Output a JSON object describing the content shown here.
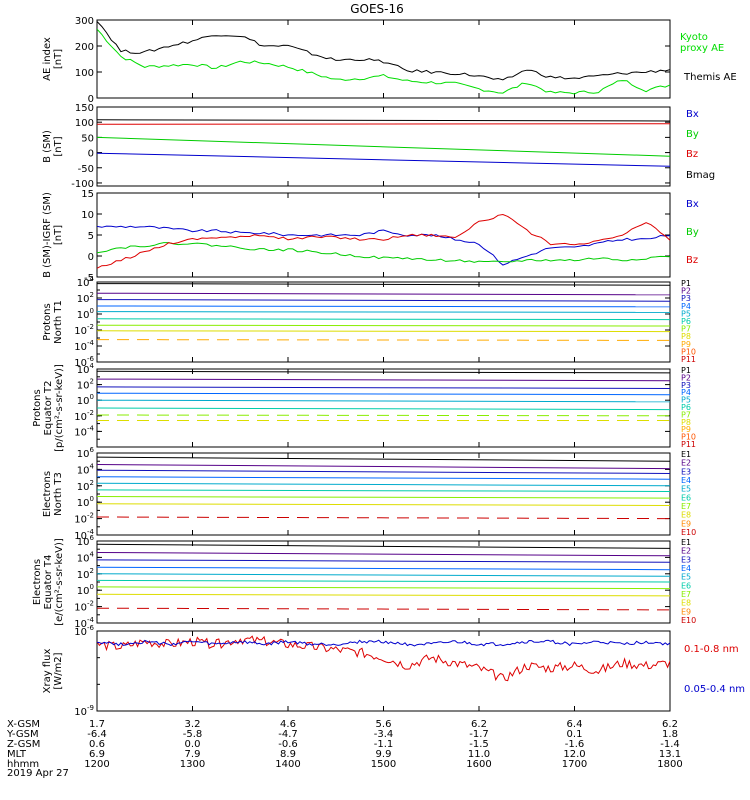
{
  "title": "GOES-16",
  "time_ticks": [
    "1200",
    "1300",
    "1400",
    "1500",
    "1600",
    "1700",
    "1800"
  ],
  "ephemeris": {
    "rows": [
      {
        "label": "X-GSM",
        "values": [
          "1.7",
          "3.2",
          "4.6",
          "5.6",
          "6.2",
          "6.4",
          "6.2"
        ]
      },
      {
        "label": "Y-GSM",
        "values": [
          "-6.4",
          "-5.8",
          "-4.7",
          "-3.4",
          "-1.7",
          "0.1",
          "1.8"
        ]
      },
      {
        "label": "Z-GSM",
        "values": [
          "0.6",
          "0.0",
          "-0.6",
          "-1.1",
          "-1.5",
          "-1.6",
          "-1.4"
        ]
      },
      {
        "label": "MLT",
        "values": [
          "6.9",
          "7.9",
          "8.9",
          "9.9",
          "11.0",
          "12.0",
          "13.1"
        ]
      },
      {
        "label": "hhmm",
        "values": [
          "1200",
          "1300",
          "1400",
          "1500",
          "1600",
          "1700",
          "1800"
        ]
      }
    ],
    "date": "2019 Apr 27"
  },
  "chart_data": [
    {
      "type": "line",
      "panel": "ae",
      "ylabel": [
        "AE index",
        "[nT]"
      ],
      "ylim": [
        0,
        300
      ],
      "yticks": [
        "0",
        "100",
        "200",
        "300"
      ],
      "x": [
        12.0,
        12.25,
        12.5,
        12.75,
        13.0,
        13.25,
        13.5,
        13.75,
        14.0,
        14.25,
        14.5,
        14.75,
        15.0,
        15.25,
        15.5,
        15.75,
        16.0,
        16.25,
        16.5,
        16.75,
        17.0,
        17.25,
        17.5,
        17.75,
        18.0
      ],
      "series": [
        {
          "name": "Kyoto proxy AE",
          "color": "#00dd00",
          "legend_lines": [
            "Kyoto",
            "proxy AE"
          ],
          "values": [
            265,
            160,
            120,
            125,
            130,
            115,
            140,
            135,
            120,
            95,
            70,
            75,
            85,
            65,
            60,
            55,
            35,
            20,
            60,
            20,
            20,
            25,
            70,
            30,
            50
          ]
        },
        {
          "name": "Themis AE",
          "color": "#000000",
          "legend_lines": [
            "Themis AE"
          ],
          "values": [
            300,
            180,
            175,
            200,
            220,
            245,
            240,
            200,
            200,
            170,
            145,
            150,
            140,
            105,
            100,
            95,
            85,
            65,
            110,
            80,
            75,
            85,
            95,
            100,
            110
          ]
        }
      ]
    },
    {
      "type": "line",
      "panel": "bsm",
      "ylabel": [
        "B (SM)",
        "[nT]"
      ],
      "ylim": [
        -110,
        150
      ],
      "yticks": [
        "-100",
        "-50",
        "0",
        "50",
        "100",
        "150"
      ],
      "x": [
        12,
        18
      ],
      "series": [
        {
          "name": "Bx",
          "color": "#0000cc",
          "values": [
            -2,
            -45
          ]
        },
        {
          "name": "By",
          "color": "#00cc00",
          "values": [
            50,
            -12
          ]
        },
        {
          "name": "Bz",
          "color": "#dd0000",
          "values": [
            93,
            95
          ]
        },
        {
          "name": "Bmag",
          "color": "#000000",
          "values": [
            108,
            104
          ]
        }
      ]
    },
    {
      "type": "line",
      "panel": "bigrf",
      "ylabel": [
        "B (SM)-IGRF (SM)",
        "[nT]"
      ],
      "ylim": [
        -5,
        15
      ],
      "yticks": [
        "-5",
        "0",
        "5",
        "10",
        "15"
      ],
      "x": [
        12.0,
        12.25,
        12.5,
        12.75,
        13.0,
        13.25,
        13.5,
        13.75,
        14.0,
        14.25,
        14.5,
        14.75,
        15.0,
        15.25,
        15.5,
        15.75,
        16.0,
        16.25,
        16.5,
        16.75,
        17.0,
        17.25,
        17.5,
        17.75,
        18.0
      ],
      "series": [
        {
          "name": "Bx",
          "color": "#0000cc",
          "values": [
            7,
            7,
            7,
            6.5,
            6,
            6,
            5.5,
            5.5,
            5,
            5,
            5,
            5,
            6,
            5,
            5,
            4,
            3,
            -2,
            0,
            2,
            2,
            3,
            4,
            4,
            5
          ]
        },
        {
          "name": "By",
          "color": "#00cc00",
          "values": [
            1,
            2,
            2.5,
            3,
            3,
            2.5,
            2,
            1.5,
            1.5,
            1,
            0.5,
            0,
            -0.5,
            -0.5,
            -1,
            -1,
            -1.5,
            -1.5,
            -1,
            -1,
            -1,
            -0.5,
            -1,
            -0.5,
            0
          ]
        },
        {
          "name": "Bz",
          "color": "#dd0000",
          "values": [
            -3,
            -1,
            1,
            3,
            4,
            4.5,
            4.5,
            5,
            4,
            4.5,
            4.5,
            4,
            4,
            5,
            5,
            4.5,
            8,
            10,
            6,
            3,
            2.5,
            3.5,
            5,
            8,
            4
          ]
        }
      ]
    },
    {
      "type": "line",
      "panel": "pnt1",
      "ylabel": [
        "Protons",
        "North T1"
      ],
      "ylog": [
        -6,
        4
      ],
      "yticks": [
        {
          "base": "10",
          "exp": "4"
        },
        {
          "base": "10",
          "exp": "2"
        },
        {
          "base": "10",
          "exp": "0"
        },
        {
          "base": "10",
          "exp": "-2"
        },
        {
          "base": "10",
          "exp": "-4"
        },
        {
          "base": "10",
          "exp": "-6"
        }
      ],
      "x": [
        12,
        18
      ],
      "series": [
        {
          "name": "P1",
          "color": "#000000",
          "values": [
            3.8,
            3.6
          ]
        },
        {
          "name": "P2",
          "color": "#550088",
          "values": [
            2.6,
            2.4
          ]
        },
        {
          "name": "P3",
          "color": "#1111bb",
          "values": [
            1.8,
            1.6
          ]
        },
        {
          "name": "P4",
          "color": "#0066ff",
          "values": [
            1.0,
            0.9
          ]
        },
        {
          "name": "P5",
          "color": "#00aacc",
          "values": [
            0.3,
            0.2
          ]
        },
        {
          "name": "P6",
          "color": "#00ccaa",
          "values": [
            -0.6,
            -0.7
          ]
        },
        {
          "name": "P7",
          "color": "#88ee00",
          "values": [
            -1.4,
            -1.5
          ]
        },
        {
          "name": "P8",
          "color": "#dddd00",
          "values": [
            -2.1,
            -2.2
          ]
        },
        {
          "name": "P9",
          "color": "#ffaa00",
          "values": [
            -3.2,
            -3.3
          ],
          "dashed": true
        },
        {
          "name": "P10",
          "color": "#ff5500",
          "values": null
        },
        {
          "name": "P11",
          "color": "#cc0000",
          "values": null
        }
      ]
    },
    {
      "type": "line",
      "panel": "pet2",
      "ylabel": [
        "Protons",
        "Equator T2",
        "[p/(cm²-s-sr-keV)]"
      ],
      "ylog": [
        -6,
        4
      ],
      "yticks": [
        {
          "base": "10",
          "exp": "4"
        },
        {
          "base": "10",
          "exp": "2"
        },
        {
          "base": "10",
          "exp": "0"
        },
        {
          "base": "10",
          "exp": "-2"
        },
        {
          "base": "10",
          "exp": "-4"
        }
      ],
      "x": [
        12,
        18
      ],
      "series": [
        {
          "name": "P1",
          "color": "#000000",
          "values": [
            3.7,
            3.5
          ]
        },
        {
          "name": "P2",
          "color": "#550088",
          "values": [
            2.7,
            2.5
          ]
        },
        {
          "name": "P3",
          "color": "#1111bb",
          "values": [
            1.7,
            1.5
          ]
        },
        {
          "name": "P4",
          "color": "#0066ff",
          "values": [
            0.9,
            0.7
          ]
        },
        {
          "name": "P5",
          "color": "#00aacc",
          "values": [
            0.0,
            -0.2
          ]
        },
        {
          "name": "P6",
          "color": "#00ccaa",
          "values": [
            -1.0,
            -1.2
          ]
        },
        {
          "name": "P7",
          "color": "#88ee00",
          "values": [
            -1.9,
            -2.0
          ],
          "dashed": true
        },
        {
          "name": "P8",
          "color": "#dddd00",
          "values": [
            -2.6,
            -2.6
          ],
          "dashed": true
        },
        {
          "name": "P9",
          "color": "#ffaa00",
          "values": null
        },
        {
          "name": "P10",
          "color": "#ff5500",
          "values": null
        },
        {
          "name": "P11",
          "color": "#cc0000",
          "values": null
        }
      ]
    },
    {
      "type": "line",
      "panel": "ent3",
      "ylabel": [
        "Electrons",
        "North T3"
      ],
      "ylog": [
        -4,
        6
      ],
      "yticks": [
        {
          "base": "10",
          "exp": "6"
        },
        {
          "base": "10",
          "exp": "4"
        },
        {
          "base": "10",
          "exp": "2"
        },
        {
          "base": "10",
          "exp": "0"
        },
        {
          "base": "10",
          "exp": "-2"
        },
        {
          "base": "10",
          "exp": "-4"
        }
      ],
      "x": [
        12,
        18
      ],
      "series": [
        {
          "name": "E1",
          "color": "#000000",
          "values": [
            5.5,
            5.0
          ]
        },
        {
          "name": "E2",
          "color": "#550088",
          "values": [
            4.6,
            4.1
          ]
        },
        {
          "name": "E3",
          "color": "#1111bb",
          "values": [
            3.9,
            3.5
          ]
        },
        {
          "name": "E4",
          "color": "#0066ff",
          "values": [
            3.1,
            2.8
          ]
        },
        {
          "name": "E5",
          "color": "#00aacc",
          "values": [
            2.3,
            2.0
          ]
        },
        {
          "name": "E6",
          "color": "#00ccaa",
          "values": [
            1.5,
            1.3
          ]
        },
        {
          "name": "E7",
          "color": "#88ee00",
          "values": [
            0.7,
            0.5
          ]
        },
        {
          "name": "E8",
          "color": "#dddd00",
          "values": [
            -0.2,
            -0.4
          ]
        },
        {
          "name": "E9",
          "color": "#ff8800",
          "values": null
        },
        {
          "name": "E10",
          "color": "#cc0000",
          "values": [
            -1.8,
            -2.0
          ],
          "dashed": true
        }
      ]
    },
    {
      "type": "line",
      "panel": "eet4",
      "ylabel": [
        "Electrons",
        "Equator T4",
        "[e/(cm²-s-sr-keV)]"
      ],
      "ylog": [
        -4,
        6
      ],
      "yticks": [
        {
          "base": "10",
          "exp": "6"
        },
        {
          "base": "10",
          "exp": "4"
        },
        {
          "base": "10",
          "exp": "2"
        },
        {
          "base": "10",
          "exp": "0"
        },
        {
          "base": "10",
          "exp": "-2"
        },
        {
          "base": "10",
          "exp": "-4"
        }
      ],
      "x": [
        12,
        18
      ],
      "series": [
        {
          "name": "E1",
          "color": "#000000",
          "values": [
            5.6,
            5.1
          ]
        },
        {
          "name": "E2",
          "color": "#550088",
          "values": [
            4.6,
            4.2
          ]
        },
        {
          "name": "E3",
          "color": "#1111bb",
          "values": [
            3.7,
            3.4
          ]
        },
        {
          "name": "E4",
          "color": "#0066ff",
          "values": [
            2.8,
            2.5
          ]
        },
        {
          "name": "E5",
          "color": "#00aacc",
          "values": [
            2.0,
            1.7
          ]
        },
        {
          "name": "E6",
          "color": "#00ccaa",
          "values": [
            1.2,
            1.0
          ]
        },
        {
          "name": "E7",
          "color": "#88ee00",
          "values": [
            0.4,
            0.2
          ]
        },
        {
          "name": "E8",
          "color": "#dddd00",
          "values": [
            -0.5,
            -0.7
          ]
        },
        {
          "name": "E9",
          "color": "#ff8800",
          "values": null
        },
        {
          "name": "E10",
          "color": "#cc0000",
          "values": [
            -2.2,
            -2.4
          ],
          "dashed": true
        }
      ]
    },
    {
      "type": "line",
      "panel": "xray",
      "ylabel": [
        "Xray flux",
        "[W/m2]"
      ],
      "ylog": [
        -9,
        -6
      ],
      "yticks": [
        {
          "base": "10",
          "exp": "-6"
        },
        {
          "base": "10",
          "exp": "-9"
        }
      ],
      "x": [
        12.0,
        12.25,
        12.5,
        12.75,
        13.0,
        13.25,
        13.5,
        13.75,
        14.0,
        14.25,
        14.5,
        14.75,
        15.0,
        15.25,
        15.5,
        15.75,
        16.0,
        16.25,
        16.5,
        16.75,
        17.0,
        17.25,
        17.5,
        17.75,
        18.0
      ],
      "series": [
        {
          "name": "0.1-0.8 nm",
          "color": "#dd0000",
          "values": [
            -6.5,
            -6.6,
            -6.4,
            -6.5,
            -6.4,
            -6.5,
            -6.3,
            -6.4,
            -6.5,
            -6.6,
            -6.7,
            -6.8,
            -7.0,
            -7.3,
            -7.0,
            -7.2,
            -7.4,
            -7.8,
            -7.3,
            -7.4,
            -7.3,
            -7.5,
            -7.2,
            -7.3,
            -7.2
          ]
        },
        {
          "name": "0.05-0.4 nm",
          "color": "#0000cc",
          "values": [
            -6.4,
            -6.5,
            -6.4,
            -6.5,
            -6.4,
            -6.5,
            -6.4,
            -6.5,
            -6.4,
            -6.5,
            -6.5,
            -6.4,
            -6.4,
            -6.5,
            -6.5,
            -6.4,
            -6.5,
            -6.5,
            -6.4,
            -6.4,
            -6.5,
            -6.4,
            -6.5,
            -6.4,
            -6.5
          ]
        }
      ]
    }
  ]
}
